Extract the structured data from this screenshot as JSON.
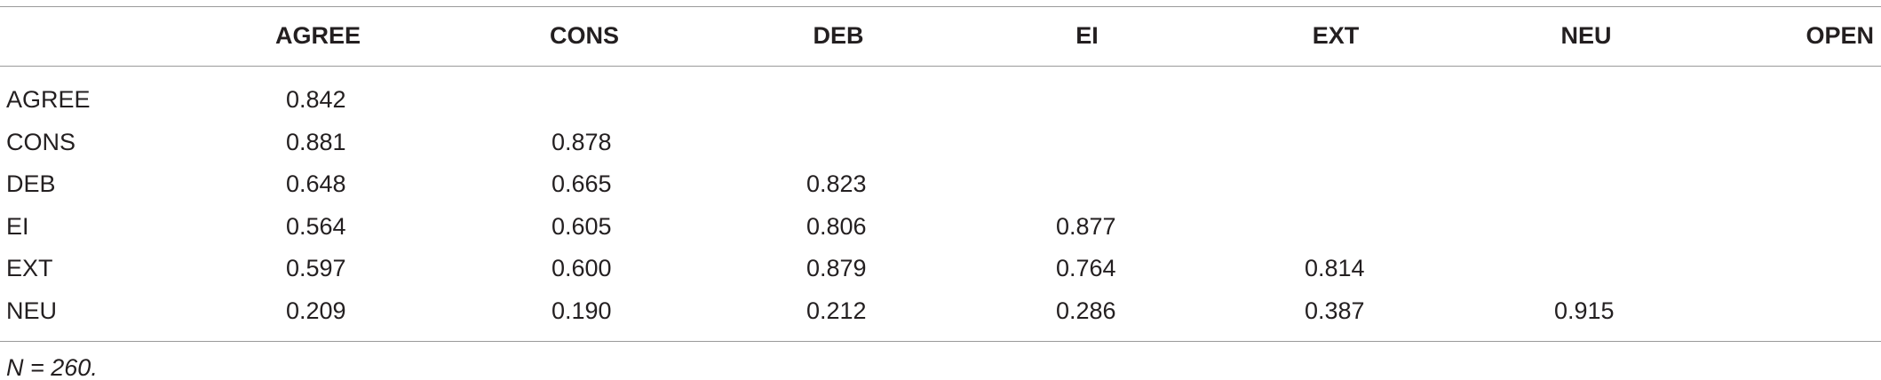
{
  "table": {
    "columns": [
      "AGREE",
      "CONS",
      "DEB",
      "EI",
      "EXT",
      "NEU",
      "OPEN"
    ],
    "rows": [
      {
        "label": "AGREE",
        "values": [
          "0.842"
        ]
      },
      {
        "label": "CONS",
        "values": [
          "0.881",
          "0.878"
        ]
      },
      {
        "label": "DEB",
        "values": [
          "0.648",
          "0.665",
          "0.823"
        ]
      },
      {
        "label": "EI",
        "values": [
          "0.564",
          "0.605",
          "0.806",
          "0.877"
        ]
      },
      {
        "label": "EXT",
        "values": [
          "0.597",
          "0.600",
          "0.879",
          "0.764",
          "0.814"
        ]
      },
      {
        "label": "NEU",
        "values": [
          "0.209",
          "0.190",
          "0.212",
          "0.286",
          "0.387",
          "0.915"
        ]
      }
    ]
  },
  "note": "N = 260."
}
